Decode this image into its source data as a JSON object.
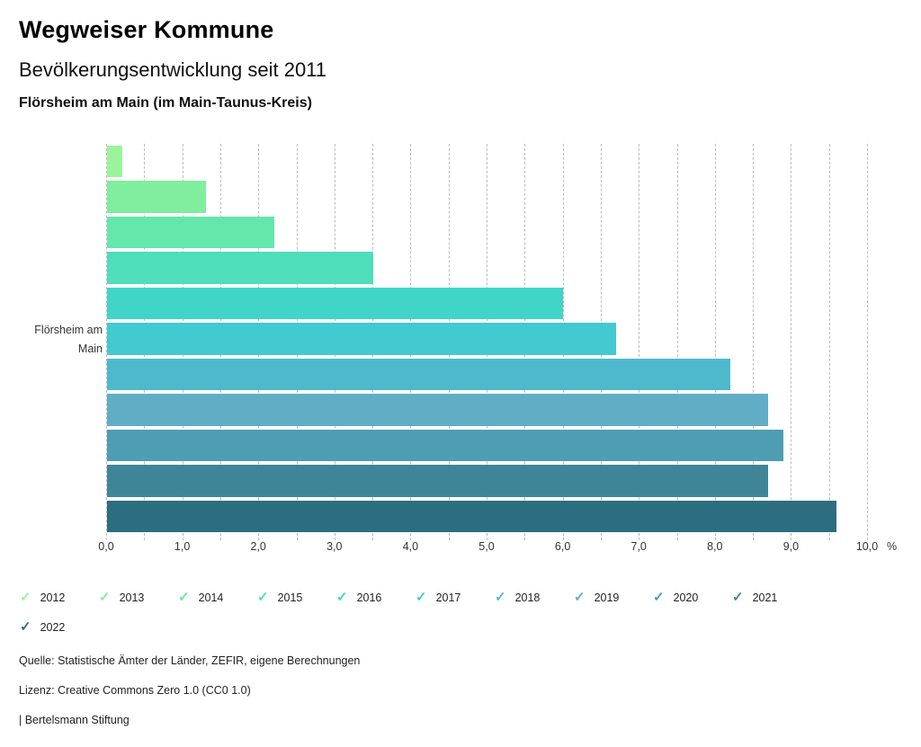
{
  "header": {
    "title": "Wegweiser Kommune",
    "subtitle": "Bevölkerungsentwicklung seit 2011",
    "location": "Flörsheim am Main (im Main-Taunus-Kreis)"
  },
  "chart_data": {
    "type": "bar",
    "orientation": "horizontal",
    "title": "Bevölkerungsentwicklung seit 2011",
    "group_label": "Flörsheim am Main",
    "row_label_lines": [
      "Flörsheim am",
      "Main"
    ],
    "categories": [
      "2012",
      "2013",
      "2014",
      "2015",
      "2016",
      "2017",
      "2018",
      "2019",
      "2020",
      "2021",
      "2022"
    ],
    "values": [
      0.2,
      1.3,
      2.2,
      3.5,
      6.0,
      6.7,
      8.2,
      8.7,
      8.9,
      8.7,
      9.6
    ],
    "colors": [
      "#9cf49a",
      "#80ee9e",
      "#65e7ab",
      "#4fdeba",
      "#41d5c7",
      "#42cad0",
      "#4eb9cc",
      "#61adc6",
      "#4f9db2",
      "#3f8598",
      "#2c6e80"
    ],
    "xlim": [
      0,
      10
    ],
    "gridline_step": 0.5,
    "x_tick_step": 1.0,
    "x_tick_labels": [
      "0,0",
      "1,0",
      "2,0",
      "3,0",
      "4,0",
      "5,0",
      "6,0",
      "7,0",
      "8,0",
      "9,0",
      "10,0"
    ],
    "x_unit": "%",
    "grid": "dashed-vertical",
    "legend_position": "bottom",
    "legend_marker": "check"
  },
  "footer": {
    "source": "Quelle: Statistische Ämter der Länder, ZEFIR, eigene Berechnungen",
    "license": "Lizenz: Creative Commons Zero 1.0 (CC0 1.0)",
    "attribution": "| Bertelsmann Stiftung"
  }
}
